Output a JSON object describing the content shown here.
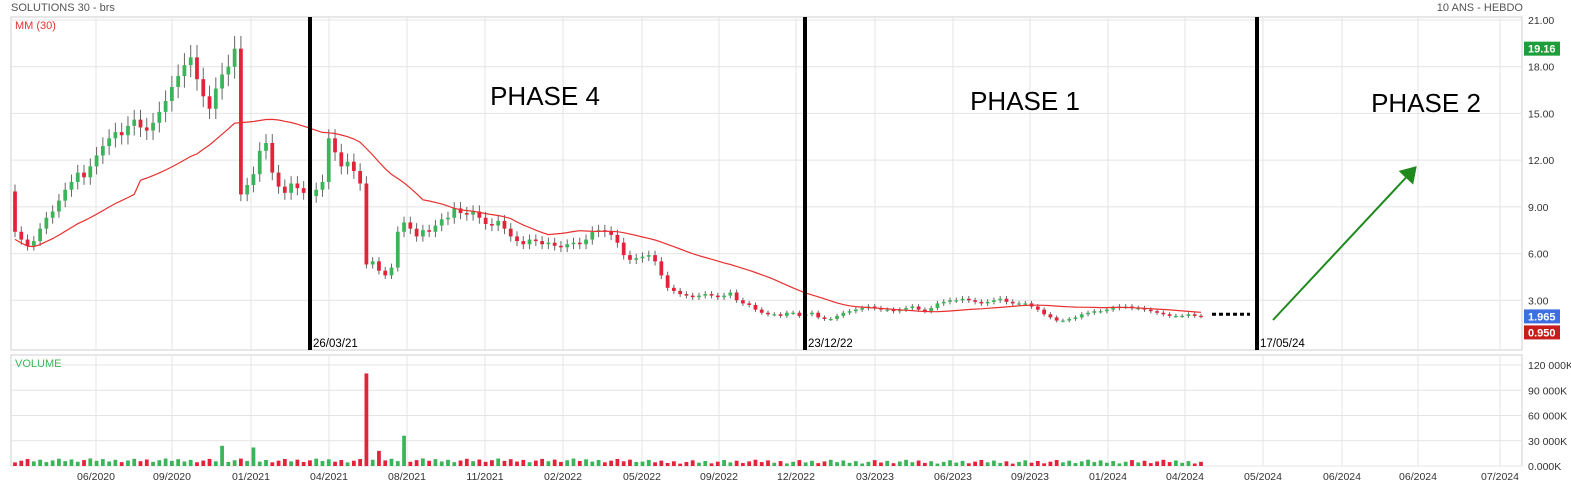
{
  "header": {
    "left": "SOLUTIONS 30 - brs",
    "right": "10 ANS - HEBDO"
  },
  "colors": {
    "up": "#3cb55a",
    "down": "#e2233a",
    "ma": "#e83030",
    "grid": "#e4e4e4",
    "arrow": "#1e8a1e",
    "tag_green": "#1f9d3a",
    "tag_blue": "#3d6fe0",
    "tag_red": "#c81d1d"
  },
  "chart_data": [
    {
      "type": "candlestick",
      "indicator_label": "MM (30)",
      "y_ticks": [
        "21.00",
        "18.00",
        "15.00",
        "12.00",
        "9.00",
        "6.00",
        "3.00"
      ],
      "ylim": [
        0,
        21
      ],
      "x_ticks": [
        "06/2020",
        "09/2020",
        "01/2021",
        "04/2021",
        "08/2021",
        "11/2021",
        "02/2022",
        "05/2022",
        "09/2022",
        "12/2022",
        "03/2023",
        "06/2023",
        "09/2023",
        "01/2024",
        "04/2024",
        "05/2024",
        "06/2024",
        "06/2024",
        "07/2024"
      ],
      "price_tags": [
        {
          "value": "19.16",
          "price": 19.16,
          "color": "tag_green"
        },
        {
          "value": "1.965",
          "price": 1.965,
          "color": "tag_blue"
        },
        {
          "value": "0.950",
          "price": 0.95,
          "color": "tag_red"
        }
      ],
      "phase_lines": [
        {
          "date": "26/03/21"
        },
        {
          "date": "23/12/22"
        },
        {
          "date": "17/05/24"
        }
      ],
      "phases": [
        "PHASE 4",
        "PHASE 1",
        "PHASE 2"
      ],
      "close": [
        7.4,
        6.9,
        6.5,
        6.8,
        7.6,
        8.3,
        8.7,
        9.4,
        10.1,
        10.6,
        11.2,
        10.9,
        11.6,
        12.3,
        12.9,
        13.4,
        13.8,
        13.6,
        14.2,
        14.6,
        14.1,
        13.9,
        14.4,
        15.1,
        15.8,
        16.7,
        17.4,
        18.1,
        18.6,
        17.2,
        16.1,
        15.3,
        16.6,
        17.5,
        18.0,
        19.16,
        9.8,
        10.4,
        11.1,
        12.6,
        13.1,
        11.2,
        10.3,
        9.9,
        10.5,
        10.2,
        9.9,
        9.7,
        10.1,
        10.6,
        13.4,
        12.5,
        11.6,
        11.9,
        11.3,
        10.5,
        5.3,
        5.5,
        4.9,
        4.6,
        5.1,
        7.4,
        8.0,
        7.6,
        7.1,
        7.5,
        7.4,
        7.8,
        8.2,
        8.3,
        8.9,
        8.6,
        8.5,
        8.7,
        8.3,
        7.9,
        7.8,
        8.1,
        7.6,
        7.1,
        6.8,
        6.6,
        6.9,
        6.8,
        6.6,
        6.7,
        6.5,
        6.4,
        6.6,
        6.7,
        6.6,
        6.9,
        7.4,
        7.5,
        7.4,
        7.2,
        6.7,
        5.9,
        5.6,
        5.7,
        5.8,
        5.9,
        5.5,
        4.6,
        3.8,
        3.6,
        3.4,
        3.3,
        3.2,
        3.3,
        3.4,
        3.3,
        3.2,
        3.3,
        3.5,
        3.0,
        2.8,
        2.7,
        2.4,
        2.2,
        2.1,
        2.1,
        2.0,
        2.2,
        2.2,
        2.0,
        2.1,
        2.2,
        1.9,
        1.8,
        1.8,
        2.0,
        2.2,
        2.3,
        2.4,
        2.5,
        2.6,
        2.5,
        2.4,
        2.4,
        2.3,
        2.4,
        2.5,
        2.6,
        2.4,
        2.3,
        2.5,
        2.8,
        2.9,
        3.0,
        3.0,
        3.1,
        3.0,
        2.9,
        2.8,
        2.9,
        3.0,
        3.1,
        2.9,
        2.8,
        2.8,
        2.8,
        2.6,
        2.4,
        2.1,
        1.9,
        1.7,
        1.7,
        1.8,
        1.9,
        2.1,
        2.2,
        2.3,
        2.3,
        2.4,
        2.5,
        2.6,
        2.6,
        2.5,
        2.5,
        2.4,
        2.3,
        2.2,
        2.1,
        2.0,
        2.0,
        2.0,
        2.1,
        2.0,
        1.965
      ],
      "projection_dotted": {
        "value": 2.1
      }
    },
    {
      "type": "bar",
      "indicator_label": "VOLUME",
      "y_ticks": [
        "120 000K",
        "90 000K",
        "60 000K",
        "30 000K",
        "0.000K"
      ],
      "ylim": [
        0,
        120000
      ],
      "spike_volumes_k": [
        {
          "index": 33,
          "value": 24000
        },
        {
          "index": 38,
          "value": 22000
        },
        {
          "index": 56,
          "value": 110000
        },
        {
          "index": 62,
          "value": 36000
        },
        {
          "index": 58,
          "value": 18000
        }
      ]
    }
  ]
}
